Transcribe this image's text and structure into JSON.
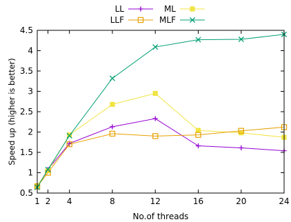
{
  "chart_data": {
    "type": "line",
    "xlabel": "No.of threads",
    "ylabel": "Speed up (higher is better)",
    "xlim": [
      1,
      24
    ],
    "ylim": [
      0.5,
      4.5
    ],
    "x_ticks": [
      1,
      2,
      4,
      8,
      12,
      16,
      20,
      24
    ],
    "y_ticks": [
      "0.5",
      "1",
      "1.5",
      "2",
      "2.5",
      "3",
      "3.5",
      "4",
      "4.5"
    ],
    "grid": false,
    "legend_position": "top-center",
    "x": [
      1,
      2,
      4,
      8,
      12,
      16,
      20,
      24
    ],
    "series": [
      {
        "name": "LL",
        "marker": "plus",
        "color": "#9400d3",
        "values": [
          0.65,
          1.08,
          1.72,
          2.13,
          2.33,
          1.66,
          1.61,
          1.54
        ]
      },
      {
        "name": "ML",
        "marker": "filled-square",
        "color": "#f0e442",
        "values": [
          0.68,
          1.05,
          1.93,
          2.68,
          2.95,
          2.04,
          1.98,
          1.87
        ]
      },
      {
        "name": "LLF",
        "marker": "open-square",
        "color": "#e69f00",
        "values": [
          0.66,
          1.0,
          1.7,
          1.96,
          1.9,
          1.93,
          2.03,
          2.12
        ]
      },
      {
        "name": "MLF",
        "marker": "cross",
        "color": "#009e73",
        "values": [
          0.64,
          1.08,
          1.91,
          3.32,
          4.09,
          4.27,
          4.28,
          4.4
        ]
      }
    ]
  }
}
